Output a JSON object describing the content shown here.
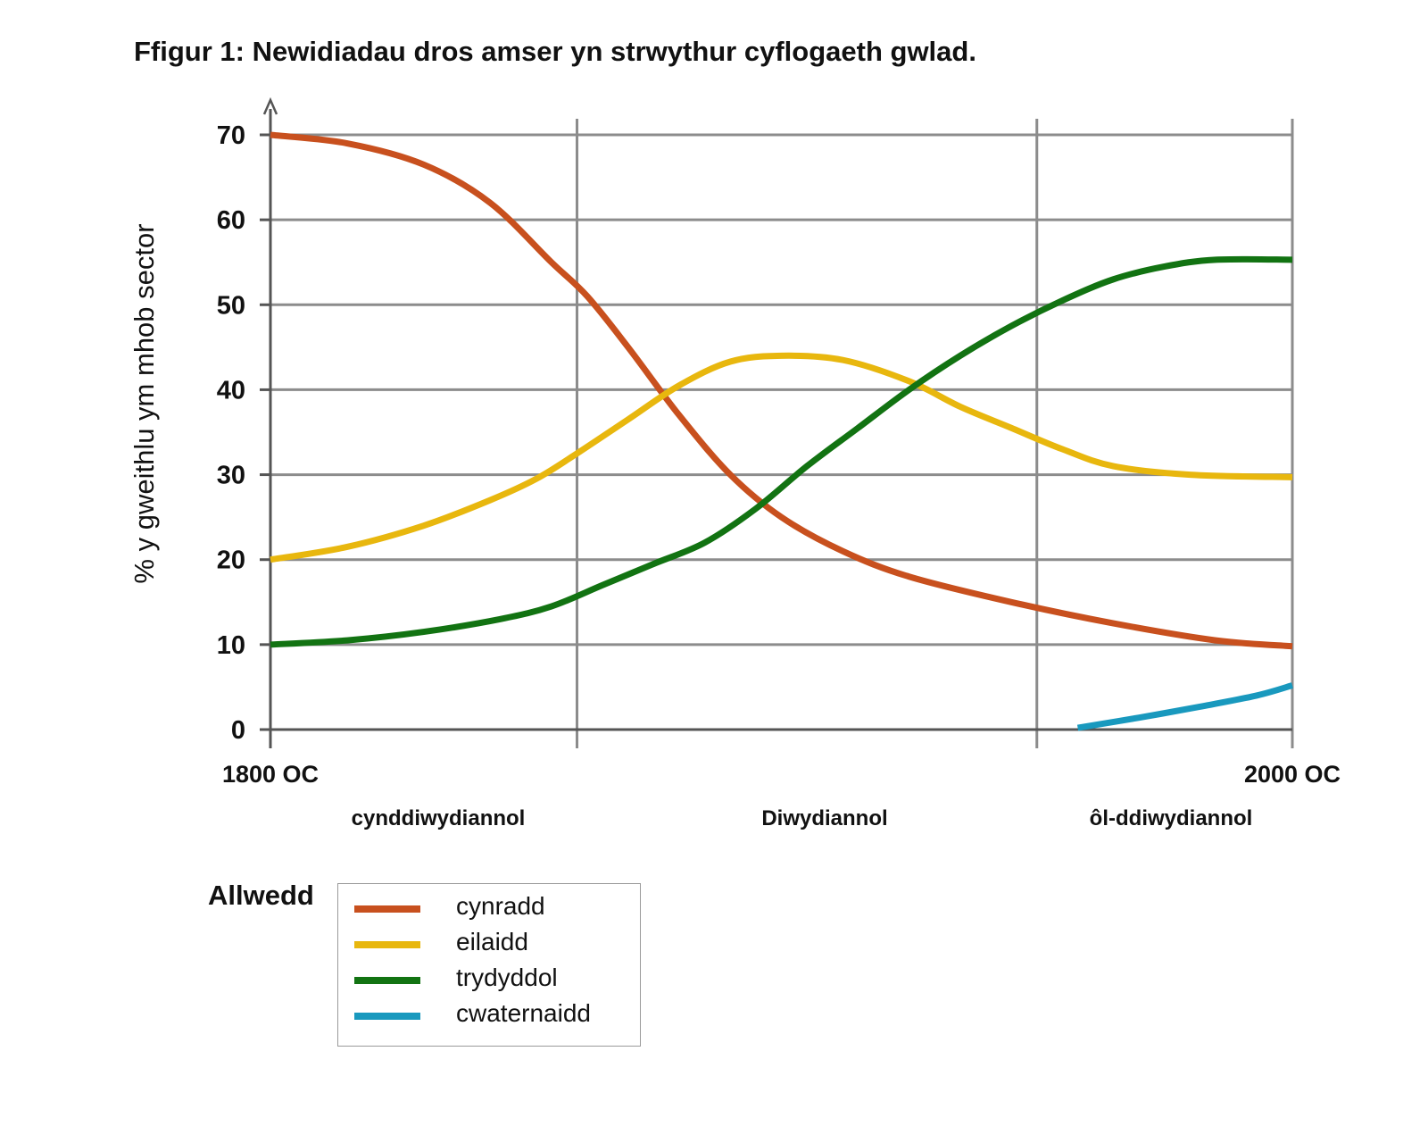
{
  "chart_data": {
    "type": "line",
    "title": "Ffigur 1: Newidiadau dros amser yn strwythur cyflogaeth gwlad.",
    "ylabel": "% y gweithlu ym mhob sector",
    "ylim": [
      0,
      70
    ],
    "yticks": [
      0,
      10,
      20,
      30,
      40,
      50,
      60,
      70
    ],
    "xlim": [
      1800,
      2000
    ],
    "x_end_labels": [
      "1800 OC",
      "2000 OC"
    ],
    "stage_labels": [
      "cynddiwydiannol",
      "Diwydiannol",
      "ôl-ddiwydiannol"
    ],
    "grid": true,
    "legend_title": "Allwedd",
    "legend_position": "bottom-left",
    "series": [
      {
        "name": "cynradd",
        "color": "#c8501e",
        "points": [
          [
            1800,
            70
          ],
          [
            1815,
            69
          ],
          [
            1830,
            66.5
          ],
          [
            1843,
            62
          ],
          [
            1855,
            55
          ],
          [
            1862,
            51
          ],
          [
            1870,
            45
          ],
          [
            1880,
            37
          ],
          [
            1890,
            30
          ],
          [
            1900,
            25
          ],
          [
            1912,
            21
          ],
          [
            1925,
            18
          ],
          [
            1945,
            15
          ],
          [
            1965,
            12.5
          ],
          [
            1985,
            10.5
          ],
          [
            2000,
            9.8
          ]
        ]
      },
      {
        "name": "eilaidd",
        "color": "#e8b70e",
        "points": [
          [
            1800,
            20
          ],
          [
            1815,
            21.5
          ],
          [
            1830,
            24
          ],
          [
            1843,
            27
          ],
          [
            1852,
            29.5
          ],
          [
            1860,
            32.5
          ],
          [
            1870,
            36.5
          ],
          [
            1880,
            40.5
          ],
          [
            1890,
            43.3
          ],
          [
            1900,
            44
          ],
          [
            1912,
            43.5
          ],
          [
            1925,
            41
          ],
          [
            1935,
            38
          ],
          [
            1945,
            35.5
          ],
          [
            1955,
            33
          ],
          [
            1965,
            31
          ],
          [
            1980,
            30
          ],
          [
            2000,
            29.7
          ]
        ]
      },
      {
        "name": "trydyddol",
        "color": "#127312",
        "points": [
          [
            1800,
            10
          ],
          [
            1815,
            10.5
          ],
          [
            1830,
            11.5
          ],
          [
            1845,
            13
          ],
          [
            1855,
            14.5
          ],
          [
            1865,
            17
          ],
          [
            1875,
            19.5
          ],
          [
            1885,
            22
          ],
          [
            1895,
            26
          ],
          [
            1905,
            31
          ],
          [
            1915,
            35.5
          ],
          [
            1925,
            40
          ],
          [
            1935,
            44
          ],
          [
            1945,
            47.5
          ],
          [
            1955,
            50.5
          ],
          [
            1965,
            53
          ],
          [
            1975,
            54.5
          ],
          [
            1985,
            55.3
          ],
          [
            2000,
            55.3
          ]
        ]
      },
      {
        "name": "cwaternaidd",
        "color": "#1999be",
        "points": [
          [
            1958,
            0.2
          ],
          [
            1970,
            1.4
          ],
          [
            1982,
            2.7
          ],
          [
            1993,
            4
          ],
          [
            2000,
            5.2
          ]
        ]
      }
    ]
  }
}
